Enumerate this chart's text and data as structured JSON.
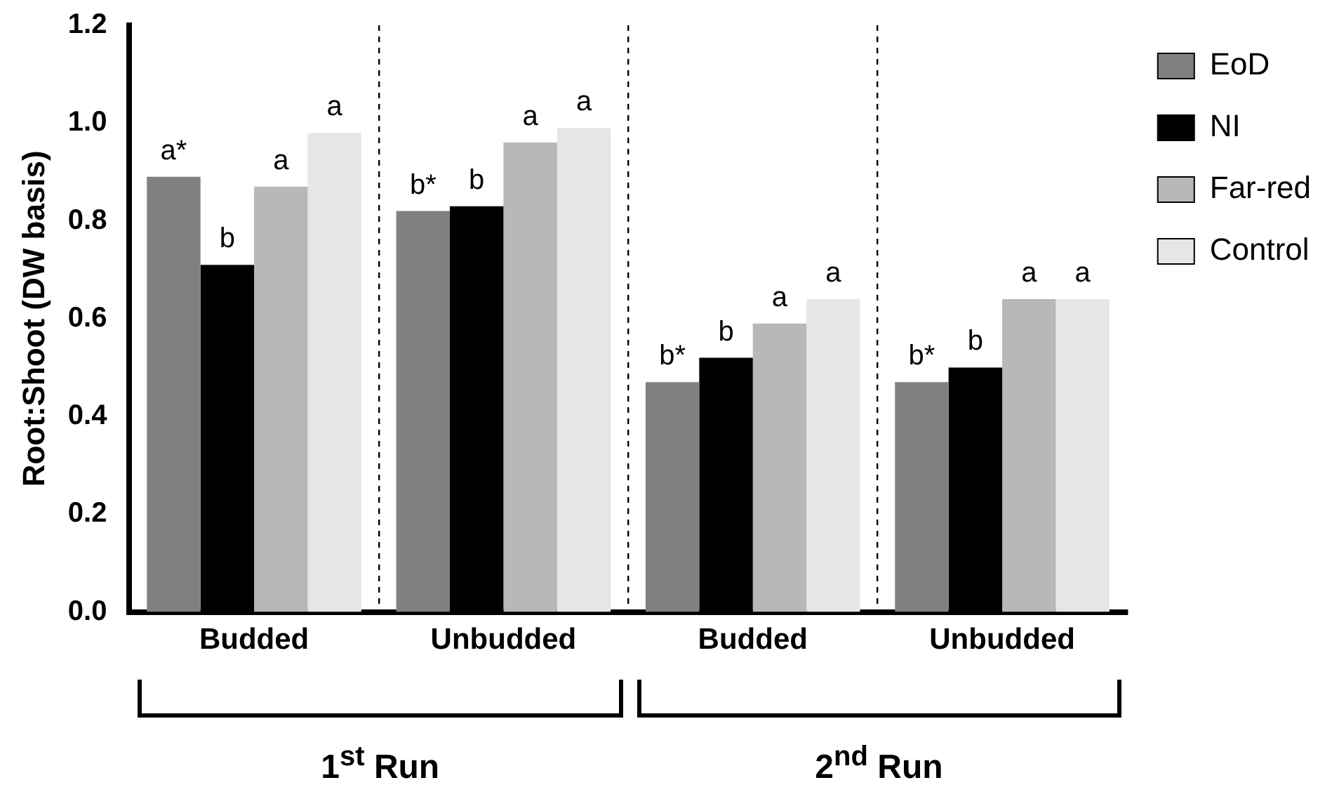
{
  "chart_data": {
    "type": "bar",
    "ylabel": "Root:Shoot (DW basis)",
    "categories": [
      "Budded",
      "Unbudded",
      "Budded",
      "Unbudded"
    ],
    "series": [
      {
        "name": "EoD",
        "color": "#808080",
        "values": [
          0.89,
          0.82,
          0.47,
          0.47
        ],
        "value_labels": [
          "a*",
          "b*",
          "b*",
          "b*"
        ]
      },
      {
        "name": "NI",
        "color": "#000000",
        "values": [
          0.71,
          0.83,
          0.52,
          0.5
        ],
        "value_labels": [
          "b",
          "b",
          "b",
          "b"
        ]
      },
      {
        "name": "Far-red",
        "color": "#b8b8b8",
        "values": [
          0.87,
          0.96,
          0.59,
          0.64
        ],
        "value_labels": [
          "a",
          "a",
          "a",
          "a"
        ]
      },
      {
        "name": "Control",
        "color": "#e6e6e6",
        "values": [
          0.98,
          0.99,
          0.64,
          0.64
        ],
        "value_labels": [
          "a",
          "a",
          "a",
          "a"
        ]
      }
    ],
    "ylim": [
      0,
      1.2
    ],
    "yticks": [
      {
        "value": 0,
        "label": "0.0"
      },
      {
        "value": 0.2,
        "label": "0.2"
      },
      {
        "value": 0.4,
        "label": "0.4"
      },
      {
        "value": 0.6,
        "label": "0.6"
      },
      {
        "value": 0.8,
        "label": "0.8"
      },
      {
        "value": 1,
        "label": "1.0"
      },
      {
        "value": 1.2,
        "label": "1.2"
      }
    ],
    "grid": "x",
    "legend": "right",
    "annotations": [
      "1$^{st}$ Run",
      "2$^{nd}$ Run"
    ]
  }
}
